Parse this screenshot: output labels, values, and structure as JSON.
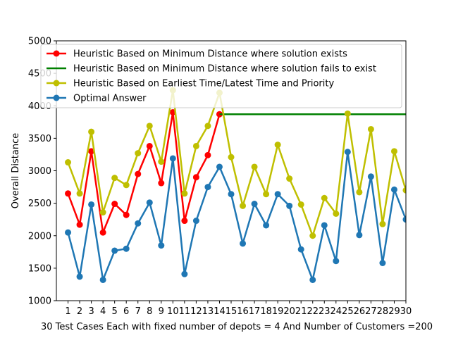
{
  "chart_data": {
    "type": "line",
    "title": "",
    "xlabel": "30 Test Cases Each with fixed number of depots = 4 And Number of Customers =200",
    "ylabel": "Overall Distance",
    "xlim": [
      0,
      30
    ],
    "ylim": [
      1000,
      5000
    ],
    "yticks": [
      1000,
      1500,
      2000,
      2500,
      3000,
      3500,
      4000,
      4500,
      5000
    ],
    "x": [
      1,
      2,
      3,
      4,
      5,
      6,
      7,
      8,
      9,
      10,
      11,
      12,
      13,
      14,
      15,
      16,
      17,
      18,
      19,
      20,
      21,
      22,
      23,
      24,
      25,
      26,
      27,
      28,
      29,
      30
    ],
    "xtick_labels": [
      "1",
      "2",
      "3",
      "4",
      "5",
      "6",
      "7",
      "8",
      "9",
      "10",
      "11",
      "12",
      "13",
      "14",
      "15",
      "16",
      "17",
      "18",
      "19",
      "20",
      "21",
      "22",
      "23",
      "24",
      "25",
      "26",
      "27",
      "28",
      "29",
      "30"
    ],
    "legend_position": "top",
    "grid": false,
    "series": [
      {
        "name": "Heuristic Based on Minimum Distance where solution exists",
        "color": "#ff0000",
        "marker": true,
        "x": [
          1,
          2,
          3,
          4,
          5,
          6,
          7,
          8,
          9,
          10,
          11,
          12,
          13,
          14
        ],
        "values": [
          2650,
          2170,
          3300,
          2050,
          2490,
          2320,
          2950,
          3380,
          2810,
          3900,
          2230,
          2900,
          3240,
          3870
        ]
      },
      {
        "name": "Heuristic Based on Minimum Distance where solution fails to exist",
        "color": "#008000",
        "marker": false,
        "x": [
          14,
          30
        ],
        "values": [
          3870,
          3870
        ]
      },
      {
        "name": "Heuristic Based on Earliest Time/Latest Time and Priority",
        "color": "#bfbf00",
        "marker": true,
        "x": [
          1,
          2,
          3,
          4,
          5,
          6,
          7,
          8,
          9,
          10,
          11,
          12,
          13,
          14,
          15,
          16,
          17,
          18,
          19,
          20,
          21,
          22,
          23,
          24,
          25,
          26,
          27,
          28,
          29,
          30
        ],
        "values": [
          3130,
          2650,
          3600,
          2360,
          2890,
          2780,
          3270,
          3690,
          3140,
          4240,
          2650,
          3380,
          3690,
          4200,
          3210,
          2460,
          3060,
          2640,
          3400,
          2880,
          2480,
          2000,
          2580,
          2340,
          3880,
          2670,
          3640,
          2180,
          3300,
          2700
        ]
      },
      {
        "name": "Optimal Answer",
        "color": "#1f77b4",
        "marker": true,
        "x": [
          1,
          2,
          3,
          4,
          5,
          6,
          7,
          8,
          9,
          10,
          11,
          12,
          13,
          14,
          15,
          16,
          17,
          18,
          19,
          20,
          21,
          22,
          23,
          24,
          25,
          26,
          27,
          28,
          29,
          30
        ],
        "values": [
          2050,
          1370,
          2480,
          1320,
          1770,
          1800,
          2190,
          2510,
          1850,
          3190,
          1410,
          2230,
          2750,
          3060,
          2640,
          1880,
          2490,
          2160,
          2640,
          2460,
          1790,
          1320,
          2160,
          1610,
          3290,
          2010,
          2910,
          1580,
          2710,
          2250
        ]
      }
    ]
  }
}
